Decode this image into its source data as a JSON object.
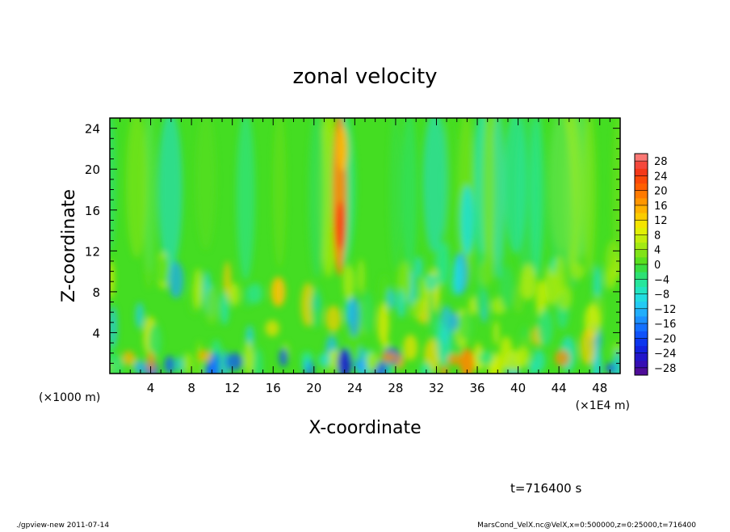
{
  "chart_data": {
    "type": "heatmap",
    "title": "zonal velocity",
    "xlabel": "X-coordinate",
    "ylabel": "Z-coordinate",
    "x_unit_left": "(×1000 m)",
    "x_unit_right": "(×1E4 m)",
    "xlim": [
      0,
      50
    ],
    "ylim": [
      0,
      25
    ],
    "x_ticks": [
      4,
      8,
      12,
      16,
      20,
      24,
      28,
      32,
      36,
      40,
      44,
      48
    ],
    "y_ticks": [
      4,
      8,
      12,
      16,
      20,
      24
    ],
    "colorbar": {
      "levels": [
        -30,
        -28,
        -26,
        -24,
        -22,
        -20,
        -18,
        -16,
        -14,
        -12,
        -10,
        -8,
        -6,
        -4,
        -2,
        0,
        2,
        4,
        6,
        8,
        10,
        12,
        14,
        16,
        18,
        20,
        22,
        24,
        26,
        28,
        30
      ],
      "labels": [
        28,
        24,
        20,
        16,
        12,
        8,
        4,
        0,
        -4,
        -8,
        -12,
        -16,
        -20,
        -24,
        -28
      ]
    },
    "features": [
      {
        "desc": "strong positive jet",
        "x": 22.5,
        "z_range": [
          10,
          25
        ],
        "value": 18
      },
      {
        "desc": "negative patch",
        "x": 35,
        "z_range": [
          12,
          18
        ],
        "value": -8
      },
      {
        "desc": "positive blob",
        "x": 16.5,
        "z_range": [
          7,
          9
        ],
        "value": 14
      },
      {
        "desc": "near-surface negative",
        "x": 23,
        "z_range": [
          0,
          2
        ],
        "value": -24
      },
      {
        "desc": "near-surface positive",
        "x": 35,
        "z_range": [
          0,
          2
        ],
        "value": 18
      }
    ]
  },
  "time_label": "t=716400 s",
  "footer_left": "./gpview-new   2011-07-14",
  "footer_right": "MarsCond_VelX.nc@VelX,x=0:500000,z=0:25000,t=716400"
}
